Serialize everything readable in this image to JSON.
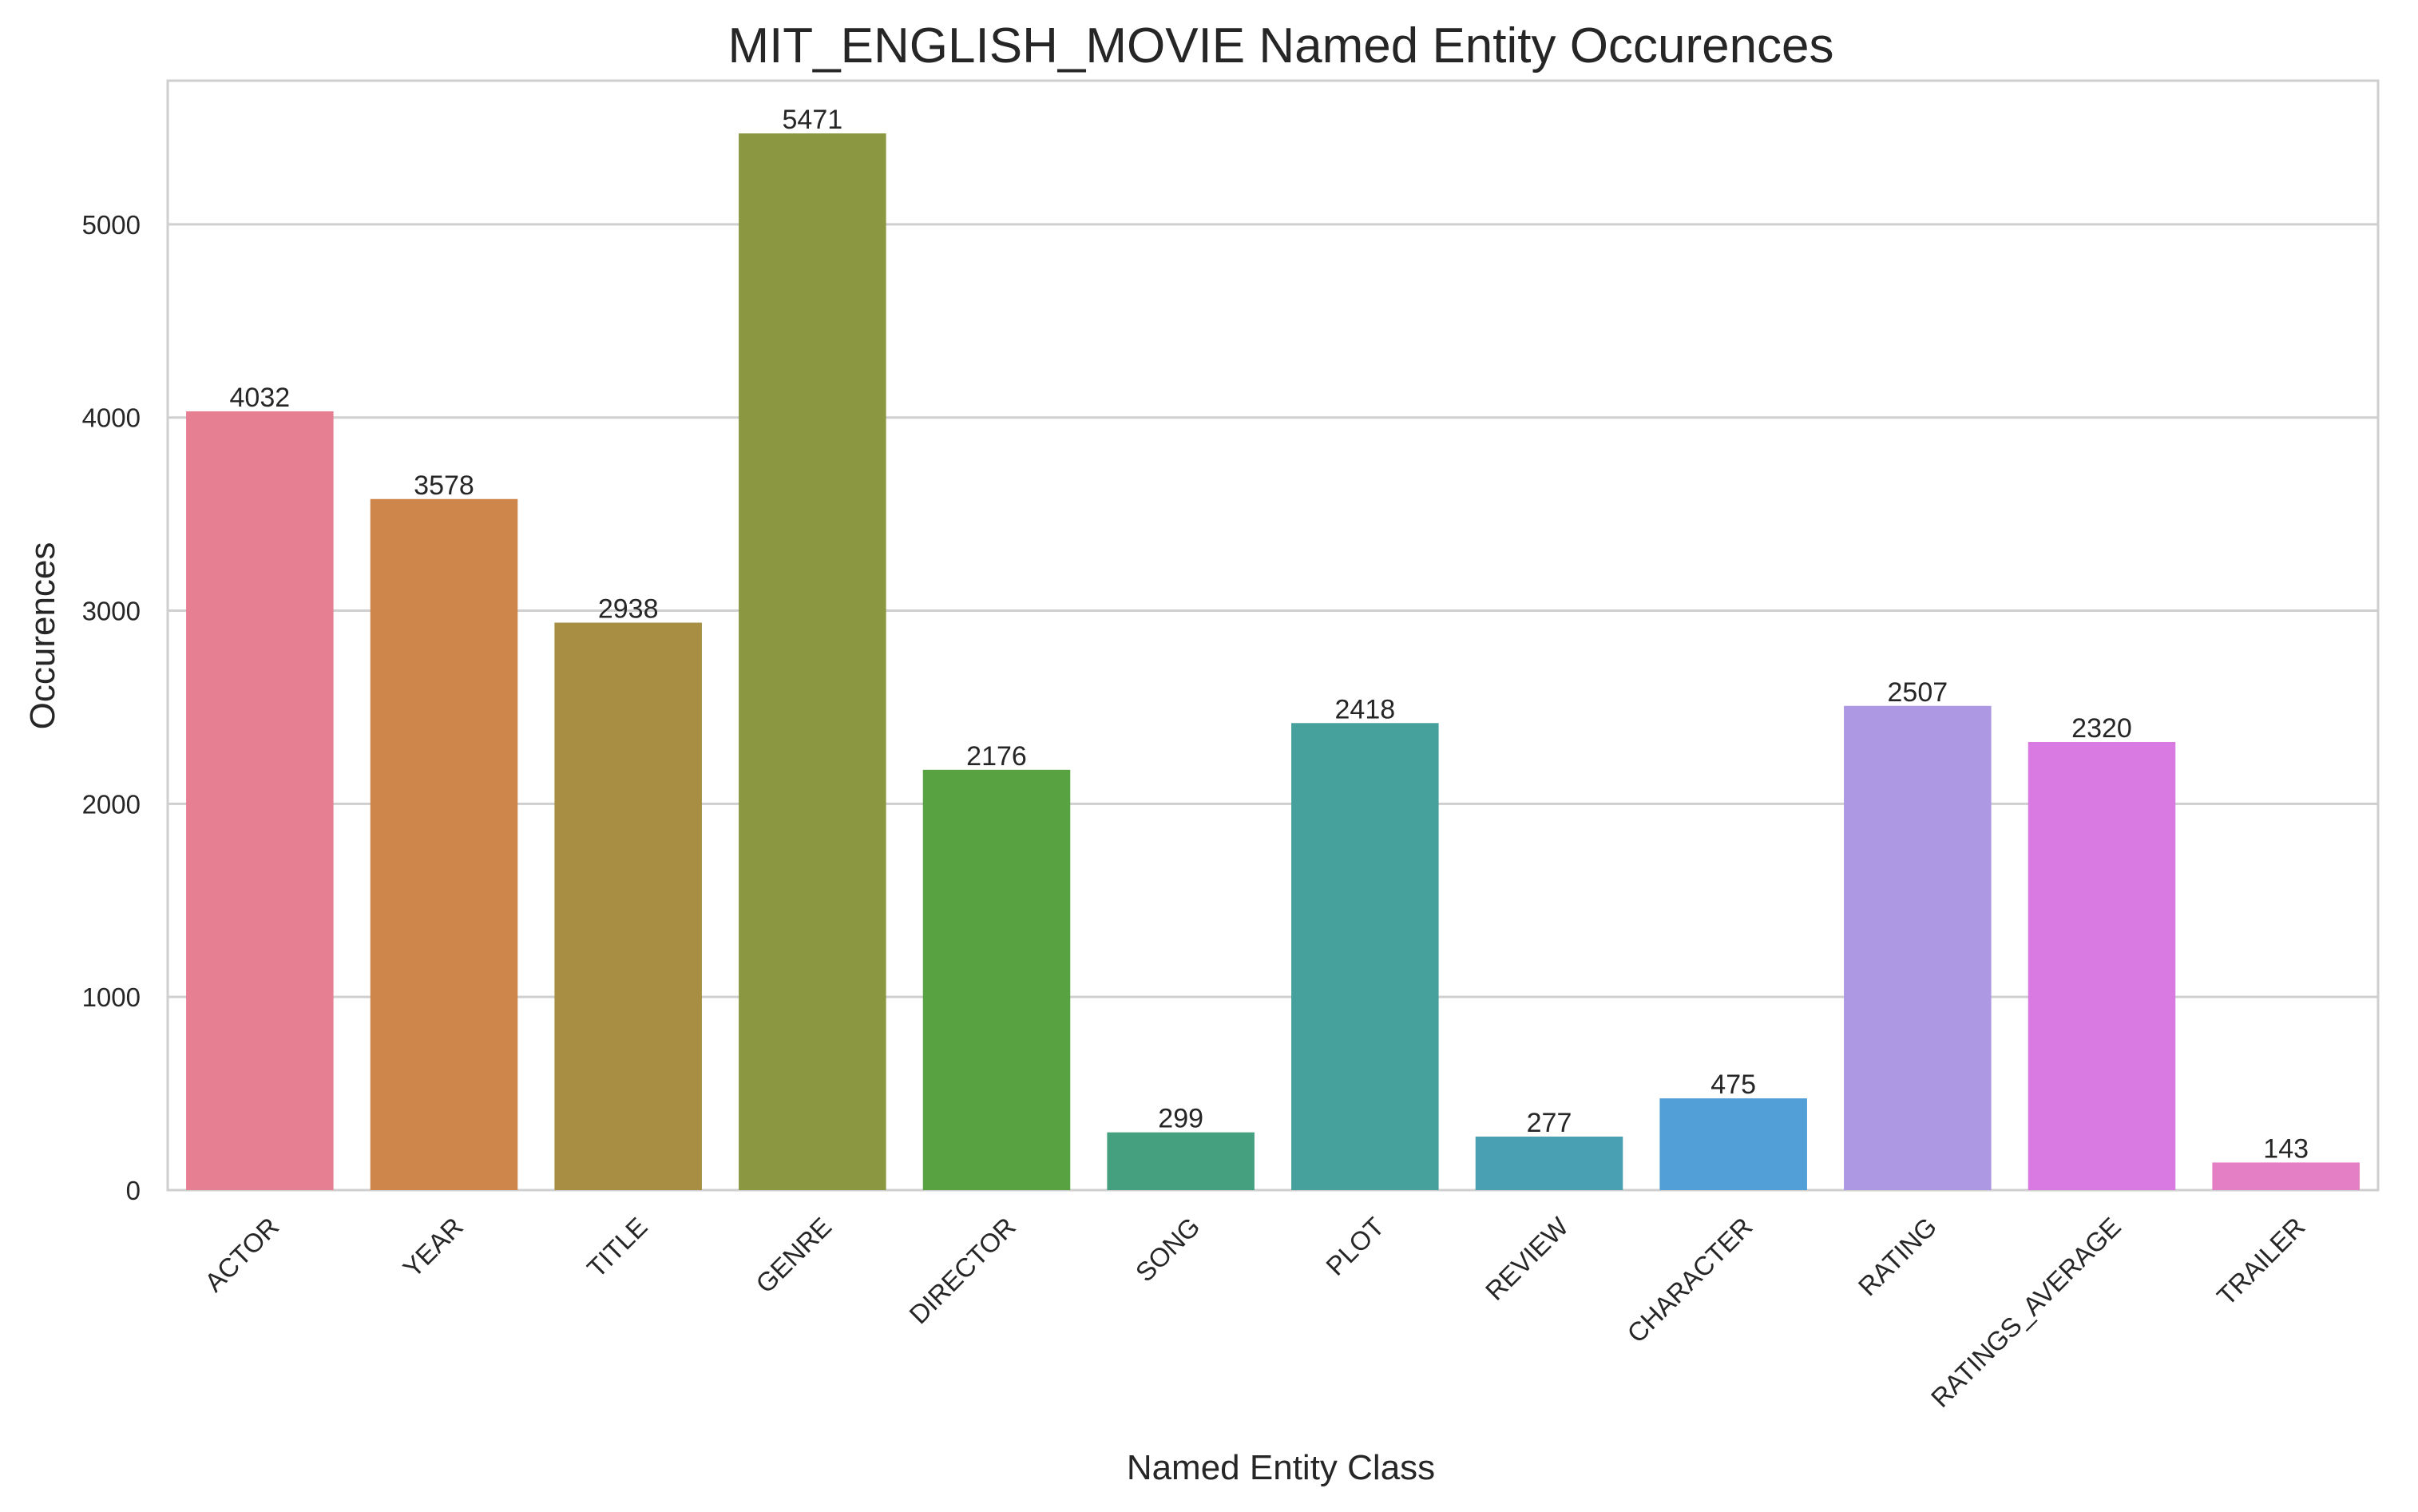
{
  "chart_data": {
    "type": "bar",
    "title": "MIT_ENGLISH_MOVIE Named Entity Occurences",
    "xlabel": "Named Entity Class",
    "ylabel": "Occurences",
    "categories": [
      "ACTOR",
      "YEAR",
      "TITLE",
      "GENRE",
      "DIRECTOR",
      "SONG",
      "PLOT",
      "REVIEW",
      "CHARACTER",
      "RATING",
      "RATINGS_AVERAGE",
      "TRAILER"
    ],
    "values": [
      4032,
      3578,
      2938,
      5471,
      2176,
      299,
      2418,
      277,
      475,
      2507,
      2320,
      143
    ],
    "data_labels": [
      "4032",
      "3578",
      "2938",
      "5471",
      "2176",
      "299",
      "2418",
      "277",
      "475",
      "2507",
      "2320",
      "143"
    ],
    "colors": [
      "#e77f93",
      "#cf864a",
      "#a78e42",
      "#8c9742",
      "#58a242",
      "#44a07e",
      "#46a09b",
      "#48a0b2",
      "#529fd8",
      "#ad98e4",
      "#d87ae2",
      "#e57fc5"
    ],
    "yticks": [
      0,
      1000,
      2000,
      3000,
      4000,
      5000
    ],
    "ytick_labels": [
      "0",
      "1000",
      "2000",
      "3000",
      "4000",
      "5000"
    ],
    "ylim": [
      0,
      5744
    ],
    "grid": true,
    "x_tick_rotation": "45°"
  }
}
